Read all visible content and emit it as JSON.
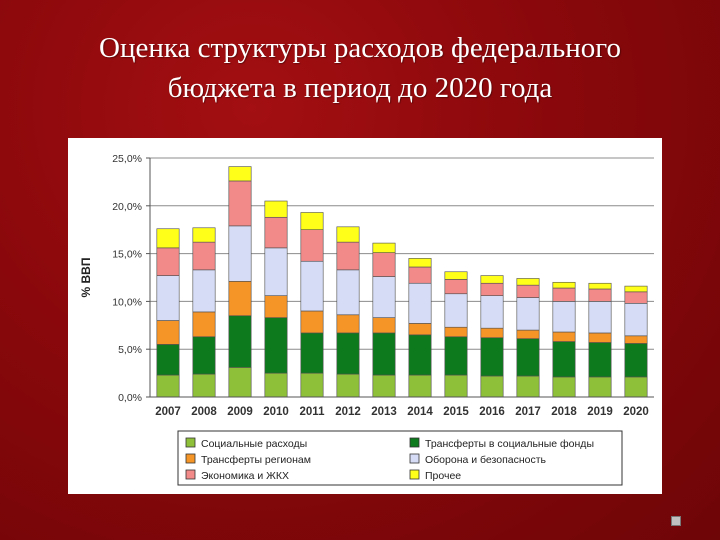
{
  "title_line1": "Оценка структуры расходов федерального",
  "title_line2": "бюджета в период до 2020 года",
  "chart_data": {
    "type": "bar",
    "stacked": true,
    "categories": [
      "2007",
      "2008",
      "2009",
      "2010",
      "2011",
      "2012",
      "2013",
      "2014",
      "2015",
      "2016",
      "2017",
      "2018",
      "2019",
      "2020"
    ],
    "ylabel": "% ВВП",
    "ylim": [
      0,
      25
    ],
    "yticks": [
      "0,0%",
      "5,0%",
      "10,0%",
      "15,0%",
      "20,0%",
      "25,0%"
    ],
    "grid": true,
    "legend_position": "bottom",
    "series": [
      {
        "name": "Социальные расходы",
        "color": "#8fc03a",
        "values": [
          2.3,
          2.4,
          3.1,
          2.5,
          2.5,
          2.4,
          2.3,
          2.3,
          2.3,
          2.2,
          2.2,
          2.1,
          2.1,
          2.1
        ]
      },
      {
        "name": "Трансферты в социальные фонды",
        "color": "#0d7a1e",
        "values": [
          3.2,
          3.9,
          5.4,
          5.8,
          4.2,
          4.3,
          4.4,
          4.2,
          4.0,
          4.0,
          3.9,
          3.7,
          3.6,
          3.5
        ]
      },
      {
        "name": "Трансферты регионам",
        "color": "#f59528",
        "values": [
          2.5,
          2.6,
          3.6,
          2.3,
          2.3,
          1.9,
          1.6,
          1.2,
          1.0,
          1.0,
          0.9,
          1.0,
          1.0,
          0.8
        ]
      },
      {
        "name": "Оборона и безопасность",
        "color": "#d6dcf5",
        "values": [
          4.7,
          4.4,
          5.8,
          5.0,
          5.2,
          4.7,
          4.3,
          4.2,
          3.5,
          3.4,
          3.4,
          3.2,
          3.3,
          3.4
        ]
      },
      {
        "name": "Экономика и ЖКХ",
        "color": "#f28a8a",
        "values": [
          2.9,
          2.9,
          4.7,
          3.2,
          3.3,
          2.9,
          2.5,
          1.7,
          1.5,
          1.3,
          1.3,
          1.4,
          1.3,
          1.2
        ]
      },
      {
        "name": "Прочее",
        "color": "#ffff1a",
        "values": [
          2.0,
          1.5,
          1.5,
          1.7,
          1.8,
          1.6,
          1.0,
          0.9,
          0.8,
          0.8,
          0.7,
          0.6,
          0.6,
          0.6
        ]
      }
    ]
  }
}
